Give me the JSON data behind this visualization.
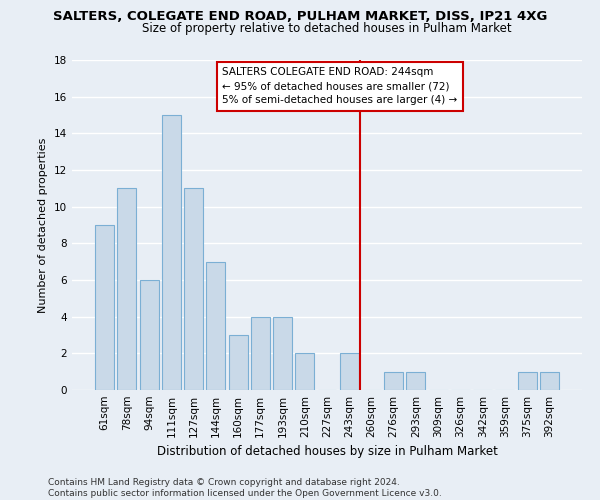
{
  "title": "SALTERS, COLEGATE END ROAD, PULHAM MARKET, DISS, IP21 4XG",
  "subtitle": "Size of property relative to detached houses in Pulham Market",
  "xlabel": "Distribution of detached houses by size in Pulham Market",
  "ylabel": "Number of detached properties",
  "bar_labels": [
    "61sqm",
    "78sqm",
    "94sqm",
    "111sqm",
    "127sqm",
    "144sqm",
    "160sqm",
    "177sqm",
    "193sqm",
    "210sqm",
    "227sqm",
    "243sqm",
    "260sqm",
    "276sqm",
    "293sqm",
    "309sqm",
    "326sqm",
    "342sqm",
    "359sqm",
    "375sqm",
    "392sqm"
  ],
  "bar_values": [
    9,
    11,
    6,
    15,
    11,
    7,
    3,
    4,
    4,
    2,
    0,
    2,
    0,
    1,
    1,
    0,
    0,
    0,
    0,
    1,
    1
  ],
  "bar_color": "#c9d9e8",
  "bar_edgecolor": "#7bafd4",
  "ylim": [
    0,
    18
  ],
  "yticks": [
    0,
    2,
    4,
    6,
    8,
    10,
    12,
    14,
    16,
    18
  ],
  "vline_x": 11.5,
  "vline_color": "#cc0000",
  "annotation_title": "SALTERS COLEGATE END ROAD: 244sqm",
  "annotation_line1": "← 95% of detached houses are smaller (72)",
  "annotation_line2": "5% of semi-detached houses are larger (4) →",
  "annotation_box_color": "#cc0000",
  "footer_line1": "Contains HM Land Registry data © Crown copyright and database right 2024.",
  "footer_line2": "Contains public sector information licensed under the Open Government Licence v3.0.",
  "background_color": "#e8eef5",
  "plot_background": "#e8eef5",
  "grid_color": "#ffffff",
  "title_fontsize": 9.5,
  "subtitle_fontsize": 8.5,
  "xlabel_fontsize": 8.5,
  "ylabel_fontsize": 8.0,
  "tick_fontsize": 7.5,
  "annot_fontsize": 7.5,
  "footer_fontsize": 6.5
}
